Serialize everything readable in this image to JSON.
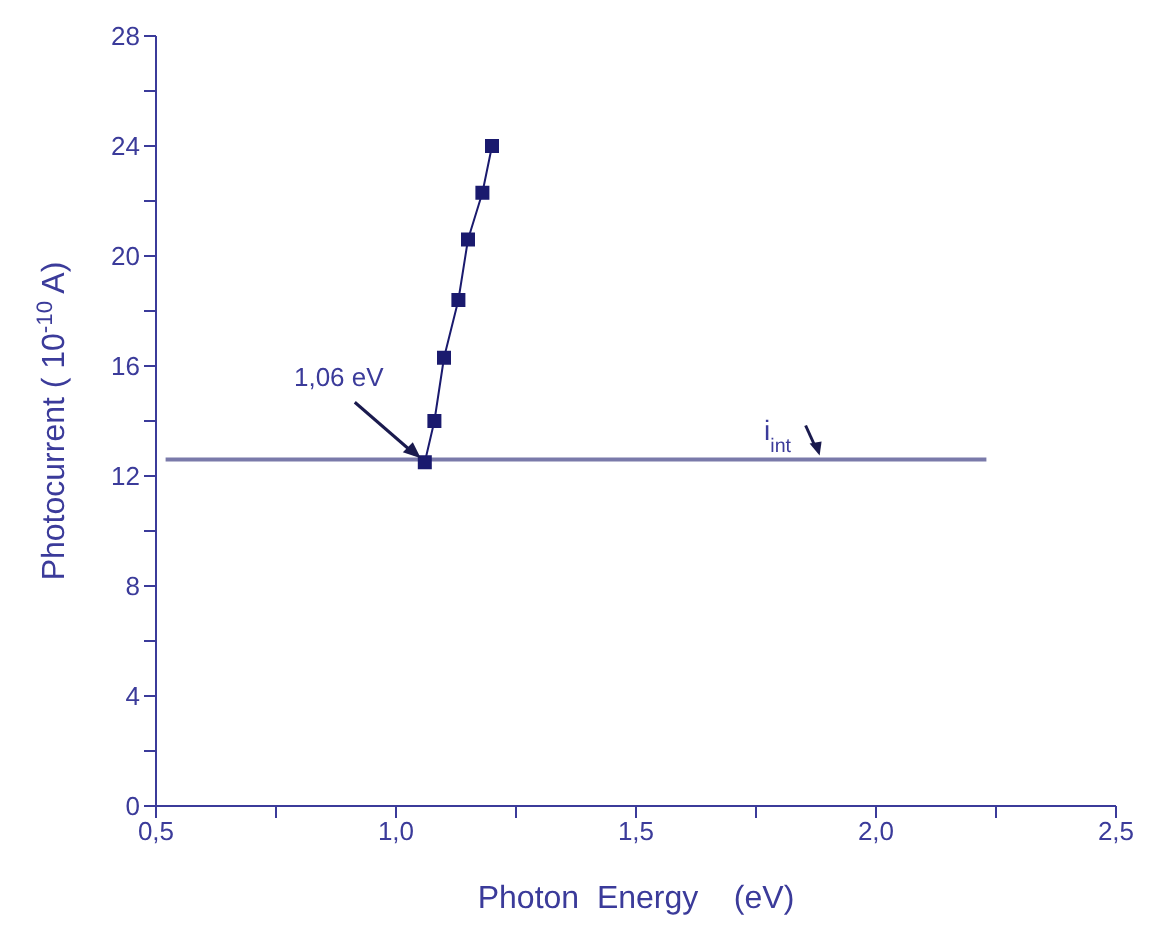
{
  "chart_data": {
    "type": "line",
    "xlabel": "Photon  Energy    (eV)",
    "ylabel": "Photocurrent ( 10$^{-10}$ A)",
    "series": [
      {
        "color": "#1a1a6e",
        "marker": "square",
        "x": [
          1.06,
          1.08,
          1.1,
          1.13,
          1.15,
          1.18,
          1.2
        ],
        "values": [
          12.5,
          14.0,
          16.3,
          18.4,
          20.6,
          22.3,
          24.0
        ]
      },
      {
        "color": "#7a7aaa",
        "marker": "none",
        "x": [
          0.52,
          2.23
        ],
        "values": [
          12.6,
          12.6
        ]
      }
    ],
    "xlim": [
      0.5,
      2.5
    ],
    "xticks": [
      {
        "value": 0.5,
        "label": "0,5"
      },
      {
        "value": 0.75,
        "label": null
      },
      {
        "value": 1.0,
        "label": "1,0"
      },
      {
        "value": 1.25,
        "label": null
      },
      {
        "value": 1.5,
        "label": "1,5"
      },
      {
        "value": 1.75,
        "label": null
      },
      {
        "value": 2.0,
        "label": "2,0"
      },
      {
        "value": 2.25,
        "label": null
      },
      {
        "value": 2.5,
        "label": "2,5"
      }
    ],
    "ylim": [
      0,
      28
    ],
    "yticks": [
      0,
      {
        "value": 2,
        "label": null
      },
      4,
      {
        "value": 6,
        "label": null
      },
      8,
      {
        "value": 10,
        "label": null
      },
      12,
      {
        "value": 14,
        "label": null
      },
      16,
      {
        "value": 18,
        "label": null
      },
      20,
      {
        "value": 22,
        "label": null
      },
      24,
      {
        "value": 26,
        "label": null
      },
      28
    ],
    "annotations": [
      {
        "text": "1,06 eV",
        "x": 1.06,
        "y": 12.5
      },
      {
        "text": "i$_{int}$",
        "x": 1.87,
        "y": 12.6
      }
    ]
  }
}
